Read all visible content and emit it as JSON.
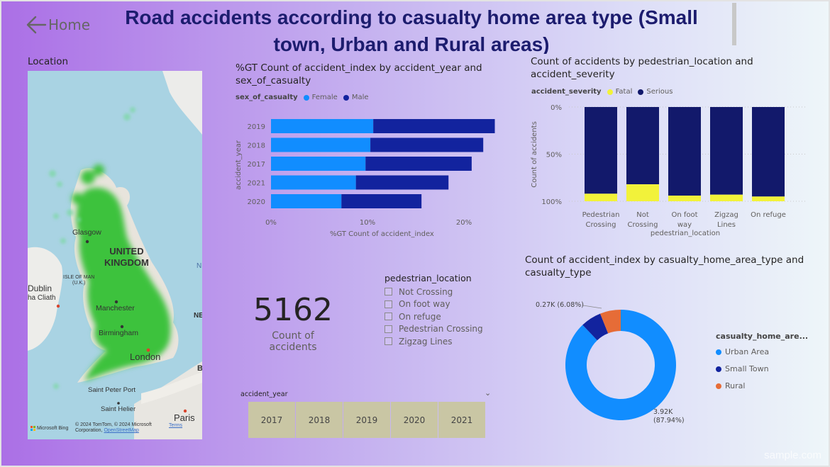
{
  "nav": {
    "home_label": "Home"
  },
  "title": "Road accidents according to casualty home area type (Small town, Urban and Rural areas)",
  "map": {
    "label": "Location",
    "place_labels": {
      "uk": "UNITED\nKINGDOM",
      "glasgow": "Glasgow",
      "isle_of_man": "ISLE OF MAN\n(U.K.)",
      "dublin": "Dublin",
      "cliath": "ha Cliath",
      "manchester": "Manchester",
      "birmingham": "Birmingham",
      "london": "London",
      "saint_peter_port": "Saint Peter Port",
      "saint_helier": "Saint Helier",
      "paris": "Paris",
      "n_edge": "N",
      "ne_edge": "NE",
      "b_edge": "B"
    },
    "bing_logo": "Microsoft Bing",
    "attribution_1": "© 2024 TomTom, © 2024 Microsoft",
    "attribution_2": "Corporation,",
    "attribution_link": "OpenStreetMap",
    "terms": "Terms"
  },
  "bar_chart_1": {
    "title": "%GT Count of accident_index by accident_year and sex_of_casualty",
    "legend_title": "sex_of_casualty",
    "ylabel": "accident_year",
    "xlabel": "%GT Count of accident_index",
    "x_ticks": [
      "0%",
      "10%",
      "20%"
    ],
    "colors": {
      "Female": "#118dff",
      "Male": "#12239e"
    }
  },
  "bar_chart_2": {
    "title": "Count of accidents by pedestrian_location and accident_severity",
    "legend_title": "accident_severity",
    "ylabel": "Count of accidents",
    "xlabel": "pedestrian_location",
    "y_ticks": [
      "100%",
      "50%",
      "0%"
    ],
    "colors": {
      "Fatal": "#f2f23a",
      "Serious": "#12196b"
    }
  },
  "kpi": {
    "value": "5162",
    "caption": "Count of accidents"
  },
  "slicer": {
    "title": "pedestrian_location",
    "items": [
      "Not Crossing",
      "On foot way",
      "On refuge",
      "Pedestrian Crossing",
      "Zigzag Lines"
    ]
  },
  "year_slicer": {
    "title": "accident_year",
    "years": [
      "2017",
      "2018",
      "2019",
      "2020",
      "2021"
    ]
  },
  "donut": {
    "title": "Count of accident_index by casualty_home_area_type and casualty_type",
    "legend_title": "casualty_home_are...",
    "label_small": "0.27K (6.08%)",
    "label_large_1": "3.92K",
    "label_large_2": "(87.94%)",
    "colors": {
      "Urban Area": "#118dff",
      "Small Town": "#12239e",
      "Rural": "#e66c37"
    }
  },
  "watermark": "sample.com",
  "chart_data": [
    {
      "type": "bar",
      "orientation": "horizontal",
      "stacked": true,
      "title": "%GT Count of accident_index by accident_year and sex_of_casualty",
      "xlabel": "%GT Count of accident_index",
      "ylabel": "accident_year",
      "categories": [
        "2019",
        "2018",
        "2017",
        "2021",
        "2020"
      ],
      "series": [
        {
          "name": "Female",
          "values": [
            10.6,
            10.3,
            9.8,
            8.8,
            7.3
          ]
        },
        {
          "name": "Male",
          "values": [
            12.6,
            11.7,
            11.0,
            9.6,
            8.3
          ]
        }
      ],
      "xlim": [
        0,
        23
      ],
      "x_ticks": [
        "0%",
        "10%",
        "20%"
      ],
      "legend": "top-left",
      "grid": false
    },
    {
      "type": "bar",
      "orientation": "vertical",
      "stacked": true,
      "percent": true,
      "title": "Count of accidents by pedestrian_location and accident_severity",
      "xlabel": "pedestrian_location",
      "ylabel": "Count of accidents",
      "categories": [
        "Pedestrian Crossing",
        "Not Crossing",
        "On foot way",
        "Zigzag Lines",
        "On refuge"
      ],
      "series": [
        {
          "name": "Fatal",
          "values": [
            8,
            18,
            6,
            7,
            5
          ]
        },
        {
          "name": "Serious",
          "values": [
            92,
            82,
            94,
            93,
            95
          ]
        }
      ],
      "ylim": [
        0,
        100
      ],
      "y_ticks": [
        "0%",
        "50%",
        "100%"
      ],
      "legend": "top-left",
      "grid": true
    },
    {
      "type": "pie",
      "donut": true,
      "title": "Count of accident_index by casualty_home_area_type and casualty_type",
      "categories": [
        "Urban Area",
        "Small Town",
        "Rural"
      ],
      "values": [
        3.92,
        0.27,
        0.27
      ],
      "percent": [
        87.94,
        6.08,
        5.98
      ],
      "legend": "right"
    }
  ]
}
